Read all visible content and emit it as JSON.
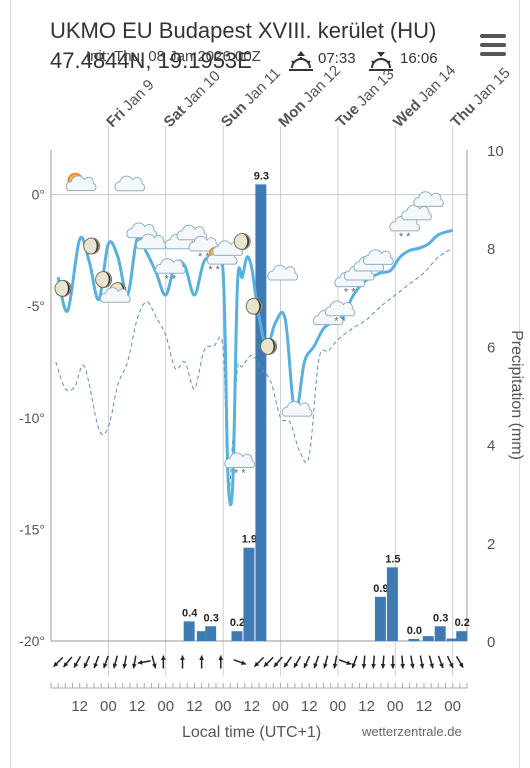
{
  "header": {
    "title": "UKMO EU Budapest XVIII. kerület (HU)",
    "coords": "47.4844N, 19.1953E",
    "init": "Init: Thu, 08 Jan 2026 00Z",
    "sunrise": "07:33",
    "sunset": "16:06"
  },
  "footer": {
    "xaxis_title": "Local time (UTC+1)",
    "credit": "wetterzentrale.de"
  },
  "colors": {
    "temp_line": "#58b0dc",
    "dew_line": "#5a90c0",
    "bar": "#3f7ab3",
    "axis": "#999999"
  },
  "chart_data": {
    "type": "line",
    "day_labels": [
      {
        "day": "Fri",
        "rest": "Jan 9"
      },
      {
        "day": "Sat",
        "rest": "Jan 10"
      },
      {
        "day": "Sun",
        "rest": "Jan 11"
      },
      {
        "day": "Mon",
        "rest": "Jan 12"
      },
      {
        "day": "Tue",
        "rest": "Jan 13"
      },
      {
        "day": "Wed",
        "rest": "Jan 14"
      },
      {
        "day": "Thu",
        "rest": "Jan 15"
      }
    ],
    "day_hours": [
      24,
      48,
      72,
      96,
      120,
      144,
      168
    ],
    "x_ticks": [
      {
        "h": 12,
        "label": "12"
      },
      {
        "h": 24,
        "label": "00"
      },
      {
        "h": 36,
        "label": "12"
      },
      {
        "h": 48,
        "label": "00"
      },
      {
        "h": 60,
        "label": "12"
      },
      {
        "h": 72,
        "label": "00"
      },
      {
        "h": 84,
        "label": "12"
      },
      {
        "h": 96,
        "label": "00"
      },
      {
        "h": 108,
        "label": "12"
      },
      {
        "h": 120,
        "label": "00"
      },
      {
        "h": 132,
        "label": "12"
      },
      {
        "h": 144,
        "label": "00"
      },
      {
        "h": 156,
        "label": "12"
      },
      {
        "h": 168,
        "label": "00"
      }
    ],
    "x_range_hours": [
      0,
      174
    ],
    "temp_axis": {
      "range": [
        -20,
        2
      ],
      "ticks": [
        {
          "v": 0,
          "label": "0°"
        },
        {
          "v": -5,
          "label": "-5°"
        },
        {
          "v": -10,
          "label": "-10°"
        },
        {
          "v": -15,
          "label": "-15°"
        },
        {
          "v": -20,
          "label": "-20°"
        }
      ]
    },
    "precip_axis": {
      "label": "Precipitation (mm)",
      "range": [
        0,
        10
      ],
      "ticks": [
        {
          "v": 0,
          "label": "0"
        },
        {
          "v": 2,
          "label": "2"
        },
        {
          "v": 4,
          "label": "4"
        },
        {
          "v": 6,
          "label": "6"
        },
        {
          "v": 8,
          "label": "8"
        },
        {
          "v": 10,
          "label": "10"
        }
      ]
    },
    "temperature": {
      "x": [
        3,
        7,
        12,
        16,
        20,
        24,
        28,
        32,
        36,
        40,
        44,
        48,
        52,
        56,
        60,
        64,
        68,
        72,
        74,
        76,
        78,
        80,
        82,
        84,
        86,
        90,
        94,
        98,
        102,
        106,
        110,
        114,
        118,
        122,
        126,
        130,
        134,
        138,
        142,
        146,
        150,
        154,
        158,
        162,
        168
      ],
      "y": [
        -3.7,
        -5.2,
        -2.0,
        -3.0,
        -4.7,
        -2.2,
        -2.8,
        -4.5,
        -2.0,
        -2.6,
        -3.5,
        -4.5,
        -3.1,
        -3.2,
        -4.5,
        -3.0,
        -2.9,
        -3.5,
        -12.5,
        -13.0,
        -4.0,
        -3.7,
        -2.8,
        -3.3,
        -4.8,
        -6.8,
        -5.7,
        -5.6,
        -9.8,
        -7.5,
        -6.8,
        -6.0,
        -5.7,
        -5.5,
        -4.6,
        -4.0,
        -3.7,
        -3.5,
        -3.4,
        -2.8,
        -2.5,
        -2.4,
        -2.2,
        -1.8,
        -1.6
      ]
    },
    "dew_point": {
      "x": [
        2,
        6,
        10,
        14,
        20,
        24,
        28,
        32,
        36,
        40,
        44,
        48,
        52,
        56,
        60,
        64,
        68,
        72,
        74,
        76,
        78,
        80,
        84,
        88,
        92,
        96,
        100,
        104,
        108,
        112,
        116,
        120,
        126,
        132,
        138,
        144,
        150,
        156,
        162,
        168
      ],
      "y": [
        -7.5,
        -8.7,
        -8.6,
        -7.7,
        -10.5,
        -10.4,
        -8.5,
        -7.5,
        -5.6,
        -4.8,
        -5.5,
        -6.3,
        -7.8,
        -7.5,
        -8.7,
        -7.0,
        -6.8,
        -6.9,
        -13.4,
        -11.0,
        -7.8,
        -7.7,
        -7.2,
        -7.8,
        -8.4,
        -10.0,
        -10.2,
        -11.5,
        -11.7,
        -7.4,
        -7.0,
        -6.5,
        -6.0,
        -5.6,
        -5.0,
        -4.5,
        -4.0,
        -3.5,
        -2.8,
        -2.4
      ]
    },
    "precipitation": [
      {
        "h": 58,
        "w": 5,
        "value": 0.4,
        "label": "0.4"
      },
      {
        "h": 63,
        "w": 4,
        "value": 0.2,
        "label": ""
      },
      {
        "h": 67,
        "w": 5,
        "value": 0.3,
        "label": "0.3"
      },
      {
        "h": 78,
        "w": 5,
        "value": 0.2,
        "label": "0.2"
      },
      {
        "h": 83,
        "w": 5,
        "value": 1.9,
        "label": "1.9"
      },
      {
        "h": 88,
        "w": 5,
        "value": 9.3,
        "label": "9.3"
      },
      {
        "h": 138,
        "w": 5,
        "value": 0.9,
        "label": "0.9"
      },
      {
        "h": 143,
        "w": 5,
        "value": 1.5,
        "label": "1.5"
      },
      {
        "h": 152,
        "w": 5,
        "value": 0.02,
        "label": "0.0"
      },
      {
        "h": 158,
        "w": 5,
        "value": 0.1,
        "label": ""
      },
      {
        "h": 163,
        "w": 5,
        "value": 0.3,
        "label": "0.3"
      },
      {
        "h": 168,
        "w": 5,
        "value": 0.05,
        "label": ""
      },
      {
        "h": 172,
        "w": 5,
        "value": 0.2,
        "label": "0.2"
      }
    ],
    "weather_icons": [
      {
        "h": 11,
        "t": 0.5,
        "icon": "sun-cloud"
      },
      {
        "h": 5,
        "t": -4.2,
        "icon": "moon"
      },
      {
        "h": 17,
        "t": -2.3,
        "icon": "moon"
      },
      {
        "h": 22,
        "t": -3.8,
        "icon": "moon"
      },
      {
        "h": 28,
        "t": -4.3,
        "icon": "moon"
      },
      {
        "h": 27,
        "t": -4.6,
        "icon": "cloud"
      },
      {
        "h": 33,
        "t": 0.4,
        "icon": "cloud"
      },
      {
        "h": 38,
        "t": -1.7,
        "icon": "cloud"
      },
      {
        "h": 42,
        "t": -2.2,
        "icon": "cloud"
      },
      {
        "h": 50,
        "t": -3.3,
        "icon": "cloud-snow"
      },
      {
        "h": 54,
        "t": -2.2,
        "icon": "cloud"
      },
      {
        "h": 59,
        "t": -1.8,
        "icon": "cloud"
      },
      {
        "h": 64,
        "t": -2.3,
        "icon": "cloud-snow"
      },
      {
        "h": 70,
        "t": -2.8,
        "icon": "sun-cloud-snow"
      },
      {
        "h": 74,
        "t": -2.5,
        "icon": "cloud"
      },
      {
        "h": 79,
        "t": -12.0,
        "icon": "cloud-snow"
      },
      {
        "h": 80,
        "t": -2.1,
        "icon": "moon"
      },
      {
        "h": 85,
        "t": -5.0,
        "icon": "moon"
      },
      {
        "h": 91,
        "t": -6.8,
        "icon": "moon"
      },
      {
        "h": 97,
        "t": -3.6,
        "icon": "cloud"
      },
      {
        "h": 103,
        "t": -9.7,
        "icon": "cloud"
      },
      {
        "h": 116,
        "t": -5.6,
        "icon": "cloud"
      },
      {
        "h": 121,
        "t": -5.2,
        "icon": "cloud-snow"
      },
      {
        "h": 125,
        "t": -3.9,
        "icon": "cloud-snow"
      },
      {
        "h": 129,
        "t": -3.6,
        "icon": "cloud"
      },
      {
        "h": 133,
        "t": -3.2,
        "icon": "cloud"
      },
      {
        "h": 137,
        "t": -2.9,
        "icon": "cloud"
      },
      {
        "h": 148,
        "t": -1.4,
        "icon": "cloud-snow"
      },
      {
        "h": 153,
        "t": -0.9,
        "icon": "cloud"
      },
      {
        "h": 158,
        "t": -0.3,
        "icon": "cloud"
      }
    ],
    "wind": [
      {
        "h": 3,
        "dir": 135
      },
      {
        "h": 7,
        "dir": 130
      },
      {
        "h": 11,
        "dir": 120
      },
      {
        "h": 15,
        "dir": 115
      },
      {
        "h": 19,
        "dir": 110
      },
      {
        "h": 23,
        "dir": 110
      },
      {
        "h": 27,
        "dir": 105
      },
      {
        "h": 31,
        "dir": 100
      },
      {
        "h": 35,
        "dir": 100
      },
      {
        "h": 39,
        "dir": 170
      },
      {
        "h": 43,
        "dir": 75
      },
      {
        "h": 47,
        "dir": 270
      },
      {
        "h": 55,
        "dir": 270
      },
      {
        "h": 63,
        "dir": 270
      },
      {
        "h": 71,
        "dir": 270
      },
      {
        "h": 79,
        "dir": 20
      },
      {
        "h": 87,
        "dir": 135
      },
      {
        "h": 91,
        "dir": 135
      },
      {
        "h": 95,
        "dir": 130
      },
      {
        "h": 99,
        "dir": 125
      },
      {
        "h": 103,
        "dir": 120
      },
      {
        "h": 107,
        "dir": 115
      },
      {
        "h": 111,
        "dir": 110
      },
      {
        "h": 115,
        "dir": 105
      },
      {
        "h": 119,
        "dir": 100
      },
      {
        "h": 123,
        "dir": 20
      },
      {
        "h": 127,
        "dir": 110
      },
      {
        "h": 131,
        "dir": 95
      },
      {
        "h": 135,
        "dir": 95
      },
      {
        "h": 139,
        "dir": 95
      },
      {
        "h": 143,
        "dir": 90
      },
      {
        "h": 147,
        "dir": 85
      },
      {
        "h": 151,
        "dir": 80
      },
      {
        "h": 155,
        "dir": 80
      },
      {
        "h": 159,
        "dir": 75
      },
      {
        "h": 163,
        "dir": 70
      },
      {
        "h": 167,
        "dir": 65
      },
      {
        "h": 171,
        "dir": 60
      }
    ]
  }
}
